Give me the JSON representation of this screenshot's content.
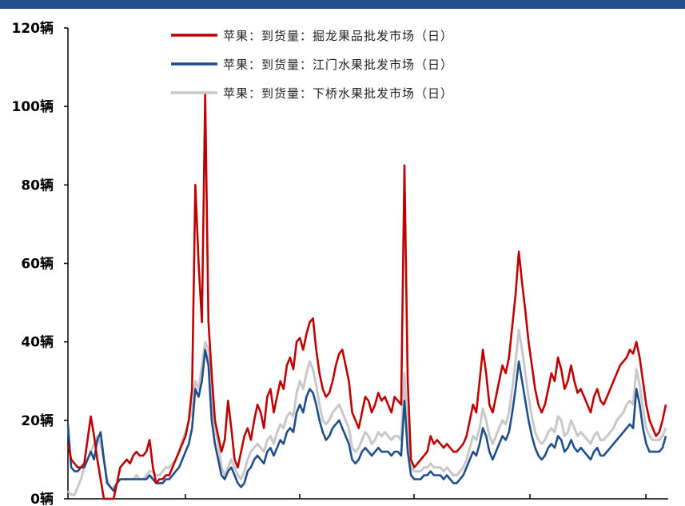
{
  "chart_data": {
    "type": "line",
    "title": "",
    "xlabel": "",
    "ylabel": "",
    "ylim": [
      0,
      120
    ],
    "yticks": [
      0,
      20,
      40,
      60,
      80,
      100,
      120
    ],
    "ytick_labels": [
      "0辆",
      "20辆",
      "40辆",
      "60辆",
      "80辆",
      "100辆",
      "120辆"
    ],
    "grid": false,
    "legend_position": "top-center",
    "series": [
      {
        "name": "苹果：到货量：掘龙果品批发市场（日）",
        "color": "#c00000",
        "values": [
          14,
          10,
          9,
          8,
          8,
          9,
          15,
          21,
          16,
          10,
          5,
          0,
          0,
          0,
          0,
          4,
          8,
          9,
          10,
          9,
          11,
          12,
          11,
          11,
          12,
          15,
          8,
          4,
          5,
          5,
          6,
          6,
          8,
          10,
          12,
          14,
          16,
          20,
          28,
          80,
          60,
          45,
          103,
          45,
          32,
          20,
          16,
          12,
          15,
          25,
          18,
          10,
          8,
          12,
          16,
          18,
          15,
          20,
          24,
          22,
          18,
          26,
          28,
          22,
          26,
          30,
          28,
          34,
          36,
          33,
          40,
          41,
          38,
          42,
          45,
          46,
          38,
          32,
          28,
          26,
          27,
          30,
          34,
          37,
          38,
          34,
          30,
          22,
          20,
          18,
          22,
          26,
          25,
          22,
          24,
          27,
          25,
          26,
          24,
          22,
          26,
          25,
          24,
          85,
          30,
          10,
          8,
          9,
          10,
          11,
          12,
          16,
          14,
          15,
          14,
          13,
          14,
          13,
          12,
          12,
          13,
          14,
          16,
          20,
          24,
          22,
          30,
          38,
          32,
          24,
          22,
          26,
          30,
          34,
          32,
          36,
          44,
          52,
          63,
          55,
          48,
          40,
          34,
          28,
          24,
          22,
          24,
          28,
          32,
          30,
          36,
          33,
          28,
          30,
          34,
          30,
          27,
          28,
          26,
          24,
          22,
          26,
          28,
          25,
          24,
          26,
          28,
          30,
          32,
          34,
          35,
          36,
          38,
          37,
          40,
          36,
          30,
          24,
          20,
          18,
          16,
          17,
          20,
          24
        ]
      },
      {
        "name": "苹果：到货量：江门水果批发市场（日）",
        "color": "#1f4e8c",
        "values": [
          19,
          8,
          7,
          7,
          8,
          8,
          10,
          12,
          10,
          15,
          17,
          10,
          4,
          3,
          2,
          4,
          5,
          5,
          5,
          5,
          5,
          5,
          5,
          5,
          5,
          6,
          5,
          4,
          4,
          4,
          5,
          5,
          6,
          7,
          8,
          10,
          12,
          14,
          18,
          28,
          26,
          30,
          38,
          34,
          20,
          14,
          10,
          6,
          5,
          7,
          8,
          6,
          4,
          3,
          4,
          7,
          8,
          10,
          11,
          10,
          9,
          12,
          13,
          11,
          13,
          15,
          14,
          17,
          18,
          17,
          22,
          24,
          22,
          26,
          28,
          27,
          24,
          20,
          17,
          15,
          16,
          18,
          19,
          20,
          18,
          16,
          14,
          10,
          9,
          10,
          12,
          13,
          12,
          11,
          12,
          13,
          12,
          12,
          12,
          11,
          12,
          12,
          11,
          25,
          12,
          6,
          5,
          5,
          5,
          6,
          6,
          7,
          6,
          6,
          6,
          5,
          6,
          5,
          4,
          4,
          5,
          6,
          8,
          10,
          12,
          11,
          14,
          18,
          16,
          12,
          10,
          12,
          14,
          16,
          15,
          17,
          22,
          28,
          35,
          30,
          25,
          20,
          16,
          13,
          11,
          10,
          11,
          13,
          14,
          13,
          16,
          15,
          12,
          13,
          15,
          13,
          12,
          13,
          12,
          11,
          10,
          12,
          13,
          11,
          11,
          12,
          13,
          14,
          15,
          16,
          17,
          18,
          19,
          18,
          28,
          24,
          18,
          14,
          12,
          12,
          12,
          12,
          13,
          16
        ]
      },
      {
        "name": "苹果：到货量：下桥水果批发市场（日）",
        "color": "#c8c8c8",
        "values": [
          2,
          1,
          1,
          3,
          5,
          8,
          10,
          12,
          14,
          16,
          14,
          10,
          5,
          3,
          3,
          4,
          5,
          5,
          5,
          5,
          5,
          6,
          5,
          5,
          6,
          7,
          7,
          6,
          6,
          7,
          8,
          8,
          9,
          10,
          12,
          15,
          17,
          20,
          22,
          30,
          28,
          34,
          40,
          38,
          25,
          18,
          14,
          8,
          6,
          8,
          10,
          8,
          6,
          5,
          7,
          10,
          12,
          13,
          14,
          13,
          12,
          15,
          16,
          14,
          17,
          19,
          18,
          21,
          22,
          21,
          27,
          30,
          28,
          32,
          35,
          33,
          29,
          24,
          20,
          19,
          20,
          22,
          23,
          24,
          22,
          20,
          18,
          13,
          12,
          13,
          15,
          17,
          16,
          14,
          15,
          17,
          16,
          17,
          16,
          15,
          16,
          16,
          15,
          32,
          16,
          8,
          7,
          7,
          7,
          8,
          8,
          9,
          8,
          8,
          8,
          7,
          8,
          7,
          6,
          6,
          7,
          8,
          10,
          13,
          16,
          15,
          18,
          23,
          20,
          16,
          14,
          16,
          18,
          20,
          19,
          22,
          28,
          35,
          43,
          38,
          32,
          26,
          21,
          17,
          15,
          14,
          15,
          17,
          18,
          17,
          21,
          20,
          16,
          17,
          20,
          18,
          16,
          17,
          16,
          15,
          14,
          16,
          17,
          15,
          15,
          16,
          17,
          18,
          20,
          21,
          22,
          24,
          25,
          24,
          33,
          29,
          23,
          18,
          16,
          15,
          15,
          15,
          16,
          18
        ]
      }
    ]
  }
}
